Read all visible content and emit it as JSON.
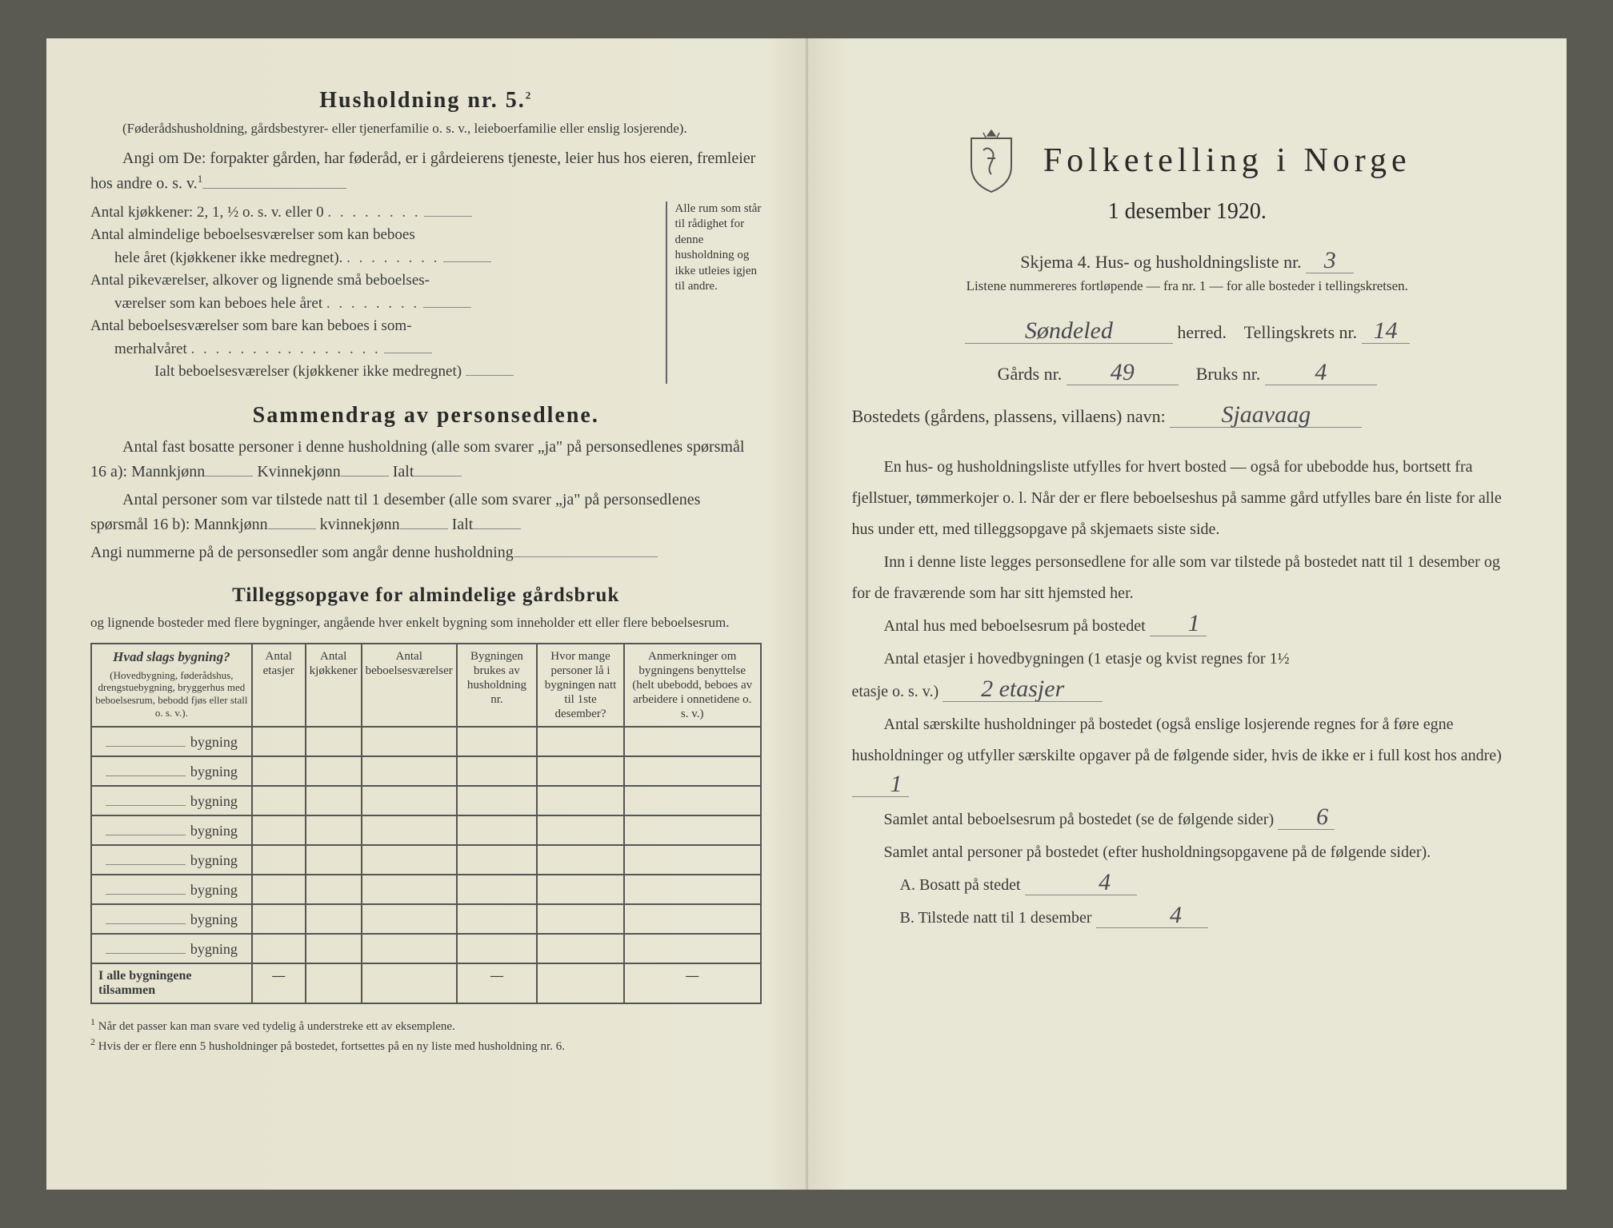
{
  "left": {
    "husholdning_title": "Husholdning nr. 5.",
    "husholdning_sup": "2",
    "husholdning_note": "(Føderådshusholdning, gårdsbestyrer- eller tjenerfamilie o. s. v., leieboerfamilie eller enslig losjerende).",
    "angi_line": "Angi om De: forpakter gården, har føderåd, er i gårdeierens tjeneste, leier hus hos eieren, fremleier hos andre o. s. v.",
    "angi_sup": "1",
    "rooms": {
      "kjokken": "Antal kjøkkener: 2, 1, ½ o. s. v. eller 0",
      "almindelig1": "Antal almindelige beboelsesværelser som kan beboes",
      "almindelig2": "hele året (kjøkkener ikke medregnet).",
      "pike1": "Antal pikeværelser, alkover og lignende små beboelses-",
      "pike2": "værelser som kan beboes hele året",
      "sommer1": "Antal beboelsesværelser som bare kan beboes i som-",
      "sommer2": "merhalvåret",
      "ialt": "Ialt beboelsesværelser (kjøkkener ikke medregnet)",
      "side_note": "Alle rum som står til rådighet for denne husholdning og ikke utleies igjen til andre."
    },
    "sammendrag_title": "Sammendrag av personsedlene.",
    "samm1": "Antal fast bosatte personer i denne husholdning (alle som svarer „ja\" på personsedlenes spørsmål 16 a): Mannkjønn",
    "samm1_kvin": "Kvinnekjønn",
    "samm1_ialt": "Ialt",
    "samm2": "Antal personer som var tilstede natt til 1 desember (alle som svarer „ja\" på personsedlenes spørsmål 16 b): Mannkjønn",
    "samm2_kvin": "kvinnekjønn",
    "samm2_ialt": "Ialt",
    "samm3": "Angi nummerne på de personsedler som angår denne husholdning",
    "tillegg_title": "Tilleggsopgave for almindelige gårdsbruk",
    "tillegg_sub": "og lignende bosteder med flere bygninger, angående hver enkelt bygning som inneholder ett eller flere beboelsesrum.",
    "table": {
      "h1_main": "Hvad slags bygning?",
      "h1_sub": "(Hovedbygning, føderådshus, drengstuebygning, bryggerhus med beboelsesrum, bebodd fjøs eller stall o. s. v.).",
      "h2": "Antal etasjer",
      "h3": "Antal kjøkkener",
      "h4": "Antal beboelsesværelser",
      "h5": "Bygningen brukes av husholdning nr.",
      "h6": "Hvor mange personer lå i bygningen natt til 1ste desember?",
      "h7": "Anmerkninger om bygningens benyttelse (helt ubebodd, beboes av arbeidere i onnetidene o. s. v.)",
      "row_label": "bygning",
      "total": "I alle bygningene tilsammen"
    },
    "footnote1_num": "1",
    "footnote1": "Når det passer kan man svare ved tydelig å understreke ett av eksemplene.",
    "footnote2_num": "2",
    "footnote2": "Hvis der er flere enn 5 husholdninger på bostedet, fortsettes på en ny liste med husholdning nr. 6."
  },
  "right": {
    "title": "Folketelling i Norge",
    "date": "1 desember 1920.",
    "skjema": "Skjema 4.  Hus- og husholdningsliste nr.",
    "skjema_nr": "3",
    "instr": "Listene nummereres fortløpende — fra nr. 1 — for alle bosteder i tellingskretsen.",
    "herred_val": "Søndeled",
    "herred_lbl": "herred.",
    "krets_lbl": "Tellingskrets nr.",
    "krets_val": "14",
    "gards_lbl": "Gårds nr.",
    "gards_val": "49",
    "bruks_lbl": "Bruks nr.",
    "bruks_val": "4",
    "bosted_lbl": "Bostedets (gårdens, plassens, villaens) navn:",
    "bosted_val": "Sjaavaag",
    "p1": "En hus- og husholdningsliste utfylles for hvert bosted — også for ubebodde hus, bortsett fra fjellstuer, tømmerkojer o. l.  Når der er flere beboelseshus på samme gård utfylles bare én liste for alle hus under ett, med tilleggsopgave på skjemaets siste side.",
    "p2": "Inn i denne liste legges personsedlene for alle som var tilstede på bostedet natt til 1 desember og for de fraværende som har sitt hjemsted her.",
    "antal_hus_lbl": "Antal hus med beboelsesrum på bostedet",
    "antal_hus_val": "1",
    "etasjer_lbl1": "Antal etasjer i hovedbygningen (1 etasje og kvist regnes for 1½",
    "etasjer_lbl2": "etasje o. s. v.)",
    "etasjer_val": "2 etasjer",
    "saerskilt_lbl": "Antal særskilte husholdninger på bostedet (også enslige losjerende regnes for å føre egne husholdninger og utfyller særskilte opgaver på de følgende sider, hvis de ikke er i full kost hos andre)",
    "saerskilt_val": "1",
    "samlet_rum_lbl": "Samlet antal beboelsesrum på bostedet (se de følgende sider)",
    "samlet_rum_val": "6",
    "samlet_pers_lbl": "Samlet antal personer på bostedet (efter husholdningsopgavene på de følgende sider).",
    "a_lbl": "A.  Bosatt på stedet",
    "a_val": "4",
    "b_lbl": "B.  Tilstede natt til 1 desember",
    "b_val": "4"
  }
}
